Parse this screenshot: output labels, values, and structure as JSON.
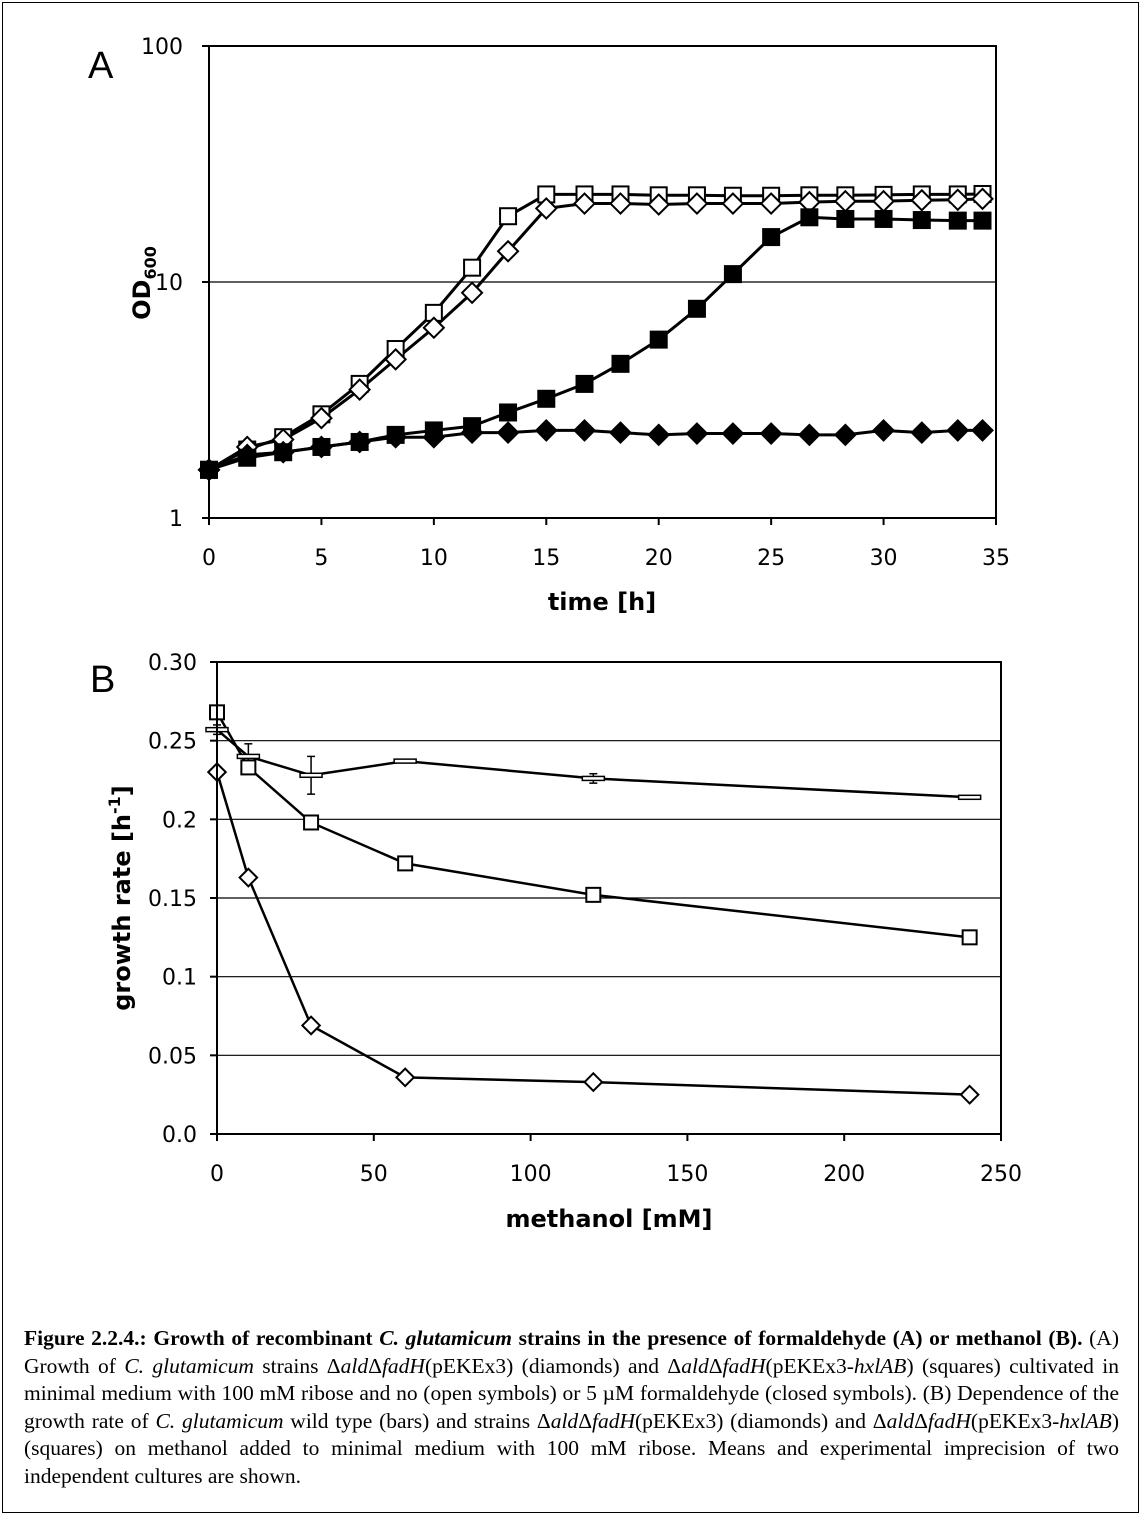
{
  "chart_data": [
    {
      "type": "line",
      "panel_label": "A",
      "xlabel": "time [h]",
      "ylabel": "OD",
      "ylabel_sub": "600",
      "xlim": [
        0,
        35
      ],
      "ylim": [
        1,
        100
      ],
      "y_scale": "log",
      "x_ticks": [
        0,
        5,
        10,
        15,
        20,
        25,
        30,
        35
      ],
      "y_ticks": [
        1,
        10,
        100
      ],
      "grid": "horizontal at 10",
      "series": [
        {
          "marker": "square",
          "fill": "open",
          "x": [
            0,
            1.7,
            3.3,
            5,
            6.7,
            8.3,
            10,
            11.7,
            13.3,
            15,
            16.7,
            18.3,
            20,
            21.7,
            23.3,
            25,
            26.7,
            28.3,
            30,
            31.7,
            33.3,
            34.4
          ],
          "y": [
            1.6,
            1.95,
            2.2,
            2.75,
            3.7,
            5.2,
            7.4,
            11.5,
            19,
            23.5,
            23.5,
            23.5,
            23.3,
            23.3,
            23.2,
            23.2,
            23.3,
            23.3,
            23.4,
            23.5,
            23.5,
            23.6
          ]
        },
        {
          "marker": "diamond",
          "fill": "open",
          "x": [
            0,
            1.7,
            3.3,
            5,
            6.7,
            8.3,
            10,
            11.7,
            13.3,
            15,
            16.7,
            18.3,
            20,
            21.7,
            23.3,
            25,
            26.7,
            28.3,
            30,
            31.7,
            33.3,
            34.4
          ],
          "y": [
            1.6,
            2.0,
            2.15,
            2.65,
            3.5,
            4.7,
            6.4,
            9.0,
            13.5,
            20.5,
            21.5,
            21.5,
            21.3,
            21.5,
            21.5,
            21.5,
            21.8,
            22.0,
            22.0,
            22.2,
            22.3,
            22.5
          ]
        },
        {
          "marker": "square",
          "fill": "filled",
          "x": [
            0,
            1.7,
            3.3,
            5,
            6.7,
            8.3,
            10,
            11.7,
            13.3,
            15,
            16.7,
            18.3,
            20,
            21.7,
            23.3,
            25,
            26.7,
            28.3,
            30,
            31.7,
            33.3,
            34.4
          ],
          "y": [
            1.6,
            1.8,
            1.9,
            2.0,
            2.1,
            2.25,
            2.35,
            2.45,
            2.8,
            3.2,
            3.7,
            4.5,
            5.7,
            7.7,
            10.8,
            15.5,
            18.8,
            18.5,
            18.5,
            18.3,
            18.2,
            18.2
          ]
        },
        {
          "marker": "diamond",
          "fill": "filled",
          "x": [
            0,
            1.7,
            3.3,
            5,
            6.7,
            8.3,
            10,
            11.7,
            13.3,
            15,
            16.7,
            18.3,
            20,
            21.7,
            23.3,
            25,
            26.7,
            28.3,
            30,
            31.7,
            33.3,
            34.4
          ],
          "y": [
            1.6,
            1.85,
            1.9,
            2.0,
            2.1,
            2.2,
            2.2,
            2.3,
            2.3,
            2.35,
            2.35,
            2.3,
            2.25,
            2.28,
            2.28,
            2.28,
            2.25,
            2.25,
            2.35,
            2.3,
            2.35,
            2.35
          ]
        }
      ]
    },
    {
      "type": "line",
      "panel_label": "B",
      "xlabel": "methanol [mM]",
      "ylabel": "growth rate [h",
      "ylabel_sup": "-1",
      "ylabel_close": "]",
      "xlim": [
        0,
        250
      ],
      "ylim": [
        0,
        0.3
      ],
      "x_ticks": [
        "0",
        "50",
        "100",
        "150",
        "200",
        "250"
      ],
      "y_ticks": [
        "0.0",
        "0.05",
        "0.1",
        "0.15",
        "0.2",
        "0.25",
        "0.30"
      ],
      "grid": "horizontal",
      "series": [
        {
          "marker": "bar",
          "fill": "open",
          "x": [
            0,
            10,
            30,
            60,
            120,
            240
          ],
          "y": [
            0.257,
            0.24,
            0.228,
            0.237,
            0.226,
            0.214
          ],
          "error": [
            0.003,
            0.008,
            0.012,
            0.001,
            0.003,
            0.001
          ]
        },
        {
          "marker": "square",
          "fill": "open",
          "x": [
            0,
            10,
            30,
            60,
            120,
            240
          ],
          "y": [
            0.268,
            0.233,
            0.198,
            0.172,
            0.152,
            0.125
          ]
        },
        {
          "marker": "diamond",
          "fill": "open",
          "x": [
            0,
            10,
            30,
            60,
            120,
            240
          ],
          "y": [
            0.23,
            0.163,
            0.069,
            0.036,
            0.033,
            0.025
          ]
        }
      ]
    }
  ],
  "caption": {
    "bold_lead_1": "Figure 2.2.4.: Growth of recombinant ",
    "bold_species": "C. glutamicum",
    "bold_lead_2": " strains in the presence of formaldehyde (A) or methanol (B).",
    "t1": " (A) Growth of ",
    "species_1": "C. glutamicum",
    "t2": " strains Δ",
    "g_ald_1": "ald",
    "t3": "Δ",
    "g_fadH_1": "fadH",
    "t4": "(pEKEx3) (diamonds) and Δ",
    "g_ald_2": "ald",
    "t5": "Δ",
    "g_fadH_2": "fadH",
    "t6": "(pEKEx3-",
    "g_hxlAB_1": "hxlAB",
    "t7": ") (squares) cultivated in minimal medium with 100 mM ribose and no (open symbols) or 5 µM formaldehyde (closed symbols). (B) Dependence of the growth rate of ",
    "species_2": "C. glutamicum",
    "t8": " wild type (bars) and strains Δ",
    "g_ald_3": "ald",
    "t9": "Δ",
    "g_fadH_3": "fadH",
    "t10": "(pEKEx3) (diamonds) and Δ",
    "g_ald_4": "ald",
    "t11": "Δ",
    "g_fadH_4": "fadH",
    "t12": "(pEKEx3-",
    "g_hxlAB_2": "hxlAB",
    "t13": ") (squares) on methanol added to minimal medium with 100 mM ribose. Means and experimental imprecision of two independent cultures are shown."
  }
}
